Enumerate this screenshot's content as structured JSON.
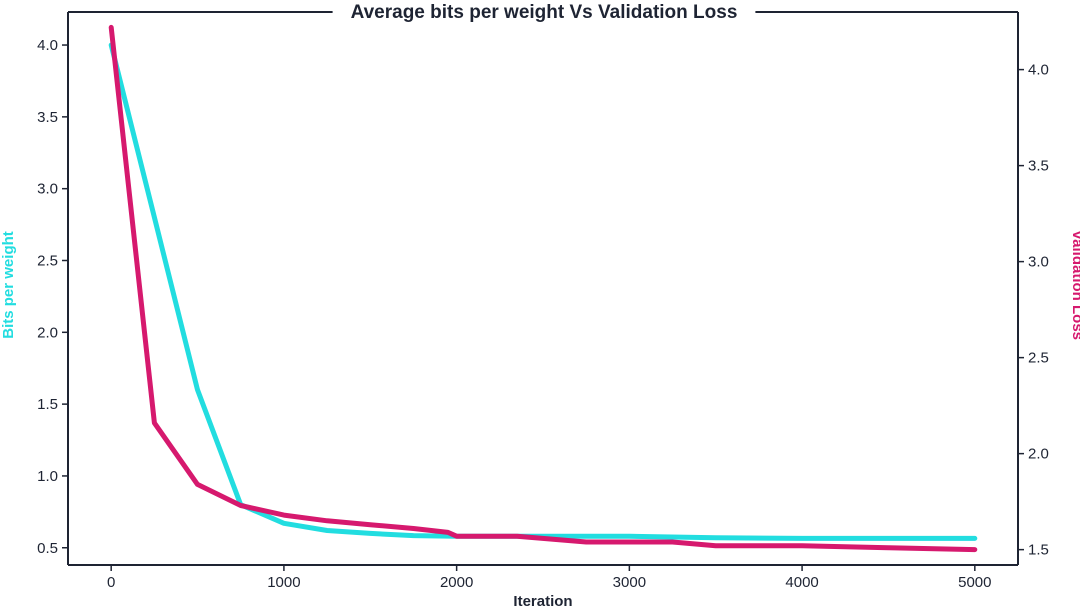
{
  "chart_data": {
    "type": "line",
    "title": "Average bits per weight Vs Validation Loss",
    "xlabel": "Iteration",
    "ylabel_left": "Bits per weight",
    "ylabel_right": "Validation Loss",
    "xlim": [
      -250,
      5250
    ],
    "ylim_left": [
      0.38,
      4.23
    ],
    "ylim_right": [
      1.42,
      4.3
    ],
    "x_ticks": [
      0,
      1000,
      2000,
      3000,
      4000,
      5000
    ],
    "y_ticks_left": [
      0.5,
      1.0,
      1.5,
      2.0,
      2.5,
      3.0,
      3.5,
      4.0
    ],
    "y_ticks_right": [
      1.5,
      2.0,
      2.5,
      3.0,
      3.5,
      4.0
    ],
    "colors": {
      "bits": "#22dde0",
      "loss": "#d6196e",
      "axis": "#1e2433"
    },
    "series": [
      {
        "name": "Bits per weight",
        "axis": "left",
        "x": [
          0,
          250,
          500,
          750,
          1000,
          1250,
          1500,
          1750,
          2000,
          2500,
          3000,
          3500,
          4000,
          4500,
          5000
        ],
        "values": [
          4.0,
          2.8,
          1.6,
          0.8,
          0.67,
          0.62,
          0.6,
          0.585,
          0.58,
          0.58,
          0.58,
          0.57,
          0.565,
          0.565,
          0.565
        ]
      },
      {
        "name": "Validation Loss",
        "axis": "right",
        "x": [
          0,
          250,
          500,
          750,
          1000,
          1250,
          1500,
          1750,
          1950,
          2000,
          2350,
          2750,
          3000,
          3250,
          3500,
          4000,
          4500,
          5000
        ],
        "values": [
          4.22,
          2.16,
          1.84,
          1.73,
          1.68,
          1.65,
          1.63,
          1.61,
          1.59,
          1.57,
          1.57,
          1.54,
          1.54,
          1.54,
          1.52,
          1.52,
          1.51,
          1.5
        ]
      }
    ]
  }
}
